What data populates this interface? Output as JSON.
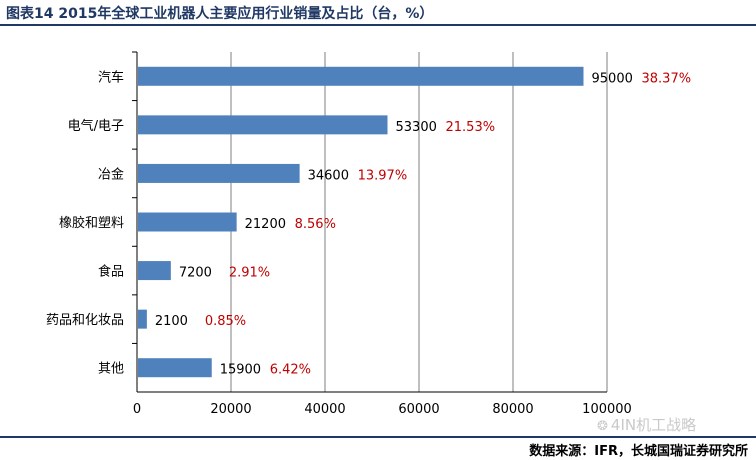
{
  "header": {
    "title": "图表14 2015年全球工业机器人主要应用行业销量及占比（台，%）"
  },
  "footer": {
    "source": "数据来源：IFR，长城国瑞证券研究所",
    "watermark": "4IN机工战略",
    "watermark_icon": "wechat-icon"
  },
  "colors": {
    "bar": "#4f81bd",
    "percent_label": "#c00000",
    "rule": "#1f3864",
    "grid": "#7f7f7f"
  },
  "chart_data": {
    "type": "bar",
    "orientation": "horizontal",
    "categories": [
      "汽车",
      "电气/电子",
      "冶金",
      "橡胶和塑料",
      "食品",
      "药品和化妆品",
      "其他"
    ],
    "values": [
      95000,
      53300,
      34600,
      21200,
      7200,
      2100,
      15900
    ],
    "percent_labels": [
      "38.37%",
      "21.53%",
      "13.97%",
      "8.56%",
      "2.91%",
      "0.85%",
      "6.42%"
    ],
    "xlim": [
      0,
      100000
    ],
    "xticks": [
      "0",
      "20000",
      "40000",
      "60000",
      "80000",
      "100000"
    ],
    "grid": true,
    "legend": "none"
  }
}
